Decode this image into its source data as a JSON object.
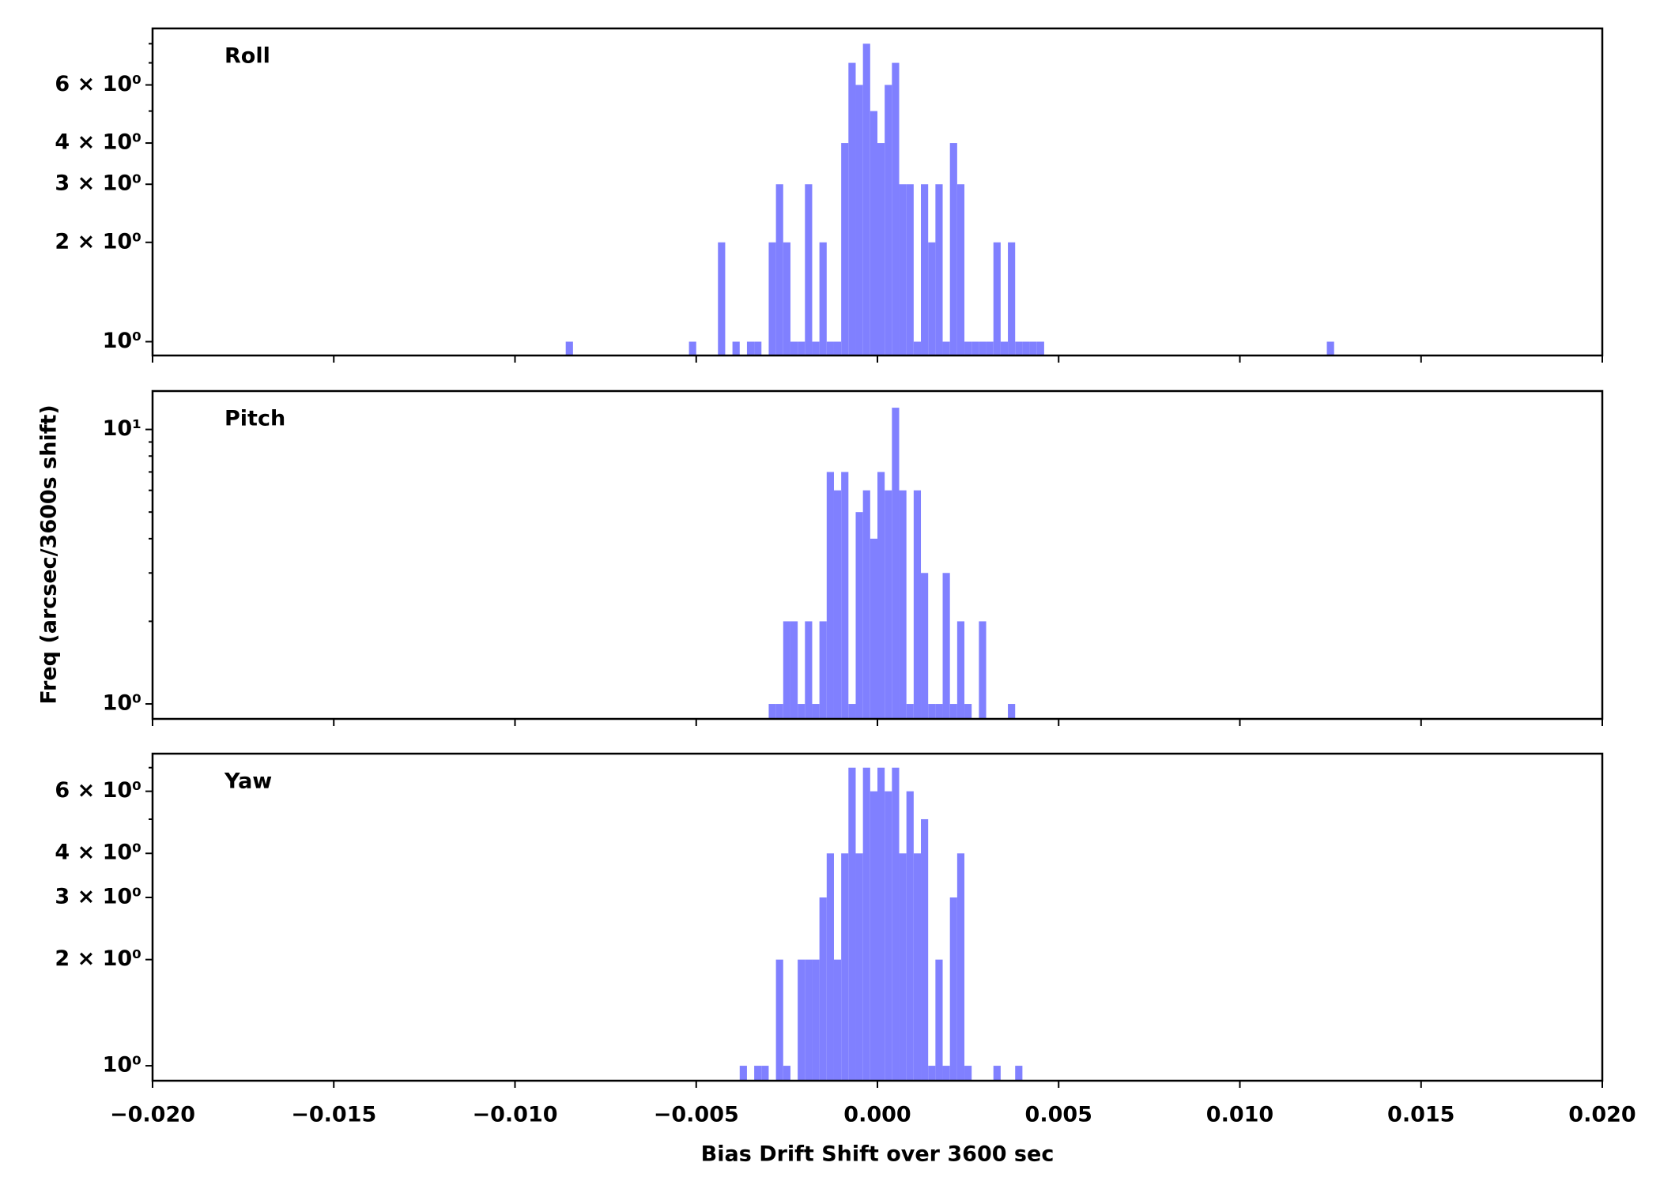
{
  "chart_data": {
    "type": "histogram",
    "xlabel": "Bias Drift Shift over 3600 sec",
    "ylabel": "Freq (arcsec/3600s shift)",
    "color": "#8080ff",
    "yscale": "log",
    "bin_width": 0.0002,
    "xlim": [
      -0.02,
      0.02
    ],
    "xticks": [
      {
        "value": -0.02,
        "label": "−0.020"
      },
      {
        "value": -0.015,
        "label": "−0.015"
      },
      {
        "value": -0.01,
        "label": "−0.010"
      },
      {
        "value": -0.005,
        "label": "−0.005"
      },
      {
        "value": 0,
        "label": "0.000"
      },
      {
        "value": 0.005,
        "label": "0.005"
      },
      {
        "value": 0.01,
        "label": "0.010"
      },
      {
        "value": 0.015,
        "label": "0.015"
      },
      {
        "value": 0.02,
        "label": "0.020"
      }
    ],
    "panels": [
      {
        "title": "Roll",
        "ylim": [
          0.908,
          8.9
        ],
        "yticks": [
          {
            "value": 1,
            "label": "10⁰"
          },
          {
            "value": 2,
            "label": "2 × 10⁰"
          },
          {
            "value": 3,
            "label": "3 × 10⁰"
          },
          {
            "value": 4,
            "label": "4 × 10⁰"
          },
          {
            "value": 6,
            "label": "6 × 10⁰"
          }
        ],
        "yminor": [
          5,
          7,
          8
        ],
        "x": [
          -0.0085,
          -0.0051,
          -0.0043,
          -0.0039,
          -0.0035,
          -0.0033,
          -0.0029,
          -0.0027,
          -0.0025,
          -0.0023,
          -0.0021,
          -0.0019,
          -0.0017,
          -0.0015,
          -0.0013,
          -0.0011,
          -0.0009,
          -0.0007,
          -0.0005,
          -0.0003,
          -0.0001,
          0.0001,
          0.0003,
          0.0005,
          0.0007,
          0.0009,
          0.0011,
          0.0013,
          0.0015,
          0.0017,
          0.0019,
          0.0021,
          0.0023,
          0.0025,
          0.0027,
          0.0029,
          0.0031,
          0.0033,
          0.0035,
          0.0037,
          0.0039,
          0.0041,
          0.0043,
          0.0045,
          0.0125
        ],
        "values": [
          1,
          1,
          2,
          1,
          1,
          1,
          2,
          3,
          2,
          1,
          1,
          3,
          1,
          2,
          1,
          1,
          4,
          7,
          6,
          8,
          5,
          4,
          6,
          7,
          3,
          3,
          1,
          3,
          2,
          3,
          1,
          4,
          3,
          1,
          1,
          1,
          1,
          2,
          1,
          2,
          1,
          1,
          1,
          1,
          1
        ]
      },
      {
        "title": "Pitch",
        "ylim": [
          0.882,
          13.8
        ],
        "yticks": [
          {
            "value": 1,
            "label": "10⁰"
          },
          {
            "value": 10,
            "label": "10¹"
          }
        ],
        "yminor": [
          2,
          3,
          4,
          5,
          6,
          7,
          8,
          9
        ],
        "x": [
          -0.0029,
          -0.0027,
          -0.0025,
          -0.0023,
          -0.0021,
          -0.0019,
          -0.0017,
          -0.0015,
          -0.0013,
          -0.0011,
          -0.0009,
          -0.0007,
          -0.0005,
          -0.0003,
          -0.0001,
          0.0001,
          0.0003,
          0.0005,
          0.0007,
          0.0009,
          0.0011,
          0.0013,
          0.0015,
          0.0017,
          0.0019,
          0.0021,
          0.0023,
          0.0025,
          0.0029,
          0.0037
        ],
        "values": [
          1,
          1,
          2,
          2,
          1,
          2,
          1,
          2,
          7,
          6,
          7,
          1,
          5,
          6,
          4,
          7,
          6,
          12,
          6,
          1,
          6,
          3,
          1,
          1,
          3,
          1,
          2,
          1,
          2,
          1
        ]
      },
      {
        "title": "Yaw",
        "ylim": [
          0.907,
          7.67
        ],
        "yticks": [
          {
            "value": 1,
            "label": "10⁰"
          },
          {
            "value": 2,
            "label": "2 × 10⁰"
          },
          {
            "value": 3,
            "label": "3 × 10⁰"
          },
          {
            "value": 4,
            "label": "4 × 10⁰"
          },
          {
            "value": 6,
            "label": "6 × 10⁰"
          }
        ],
        "yminor": [
          5,
          7
        ],
        "x": [
          -0.0037,
          -0.0033,
          -0.0031,
          -0.0027,
          -0.0025,
          -0.0021,
          -0.0019,
          -0.0017,
          -0.0015,
          -0.0013,
          -0.0011,
          -0.0009,
          -0.0007,
          -0.0005,
          -0.0003,
          -0.0001,
          0.0001,
          0.0003,
          0.0005,
          0.0007,
          0.0009,
          0.0011,
          0.0013,
          0.0015,
          0.0017,
          0.0019,
          0.0021,
          0.0023,
          0.0025,
          0.0033,
          0.0039
        ],
        "values": [
          1,
          1,
          1,
          2,
          1,
          2,
          2,
          2,
          3,
          4,
          2,
          4,
          7,
          4,
          7,
          6,
          7,
          6,
          7,
          4,
          6,
          4,
          5,
          1,
          2,
          1,
          3,
          4,
          1,
          1,
          1
        ]
      }
    ]
  }
}
